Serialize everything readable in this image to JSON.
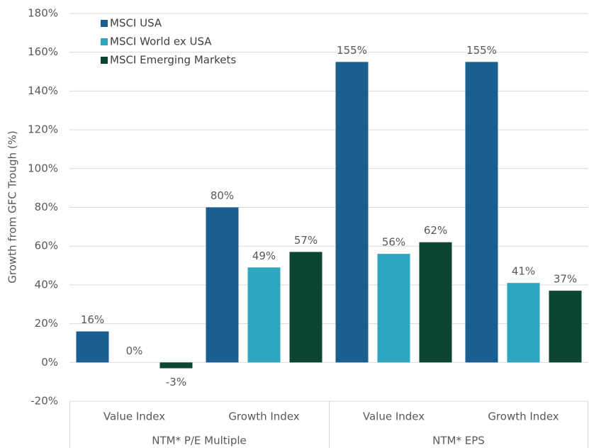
{
  "chart_data": {
    "type": "bar",
    "y_label": "Growth from GFC Trough (%)",
    "categories": [
      "Value Index",
      "Growth Index",
      "Value Index",
      "Growth Index"
    ],
    "groups": [
      "NTM* P/E Multiple",
      "NTM* EPS"
    ],
    "series": [
      {
        "name": "MSCI USA",
        "color": "#1a5e92",
        "values": [
          16,
          80,
          155,
          155
        ],
        "value_labels": [
          "16%",
          "80%",
          "155%",
          "155%"
        ]
      },
      {
        "name": "MSCI World ex USA",
        "color": "#2ea6bf",
        "values": [
          0,
          49,
          56,
          41
        ],
        "value_labels": [
          "0%",
          "49%",
          "56%",
          "41%"
        ]
      },
      {
        "name": "MSCI Emerging Markets",
        "color": "#0c4531",
        "values": [
          -3,
          57,
          62,
          37
        ],
        "value_labels": [
          "-3%",
          "57%",
          "62%",
          "37%"
        ]
      }
    ],
    "ylim": [
      -20,
      180
    ],
    "yticks": [
      {
        "value": -20,
        "label": "-20%"
      },
      {
        "value": 0,
        "label": "0%"
      },
      {
        "value": 20,
        "label": "20%"
      },
      {
        "value": 40,
        "label": "40%"
      },
      {
        "value": 60,
        "label": "60%"
      },
      {
        "value": 80,
        "label": "80%"
      },
      {
        "value": 100,
        "label": "100%"
      },
      {
        "value": 120,
        "label": "120%"
      },
      {
        "value": 140,
        "label": "140%"
      },
      {
        "value": 160,
        "label": "160%"
      },
      {
        "value": 180,
        "label": "180%"
      }
    ],
    "grid": true,
    "legend": "top-left"
  }
}
